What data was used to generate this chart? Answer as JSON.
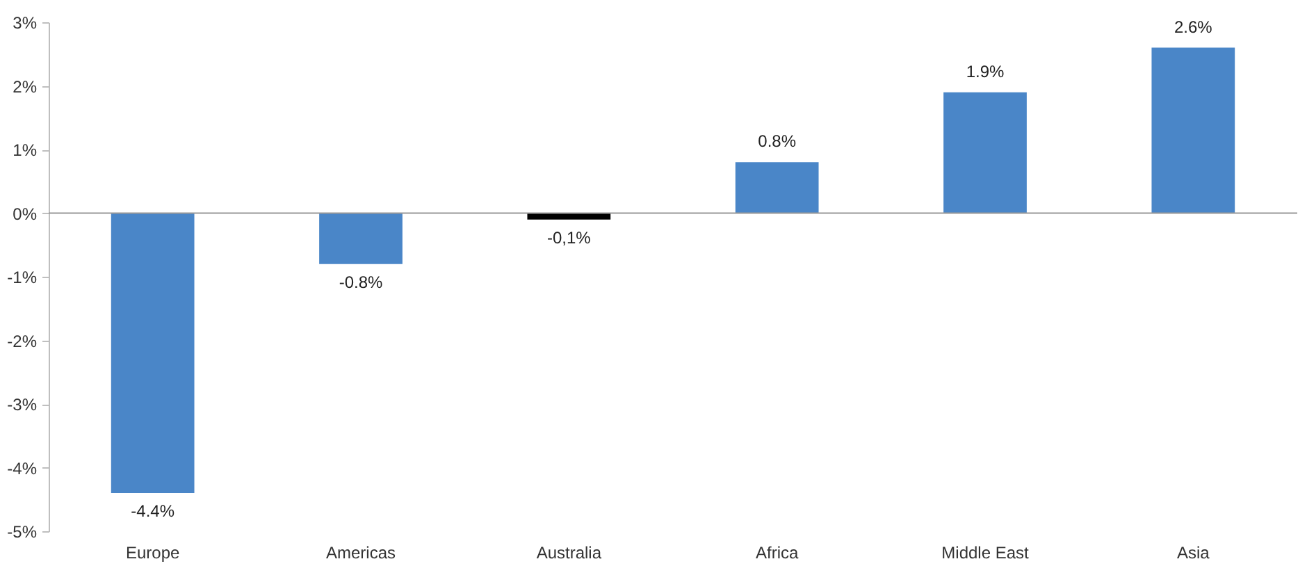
{
  "chart_data": {
    "type": "bar",
    "categories": [
      "Europe",
      "Americas",
      "Australia",
      "Africa",
      "Middle East",
      "Asia"
    ],
    "values": [
      -4.4,
      -0.8,
      -0.1,
      0.8,
      1.9,
      2.6
    ],
    "colors": [
      "#4a86c8",
      "#4a86c8",
      "#000000",
      "#4a86c8",
      "#4a86c8",
      "#4a86c8"
    ],
    "value_labels": [
      "-4.4%",
      "-0.8%",
      "-0,1%",
      "0.8%",
      "1.9%",
      "2.6%"
    ],
    "ylim": [
      -5,
      3
    ],
    "yticks": [
      {
        "value": -5,
        "label": "-5%"
      },
      {
        "value": -4,
        "label": "-4%"
      },
      {
        "value": -3,
        "label": "-3%"
      },
      {
        "value": -2,
        "label": "-2%"
      },
      {
        "value": -1,
        "label": "-1%"
      },
      {
        "value": 0,
        "label": "0%"
      },
      {
        "value": 1,
        "label": "1%"
      },
      {
        "value": 2,
        "label": "2%"
      },
      {
        "value": 3,
        "label": "3%"
      }
    ]
  }
}
